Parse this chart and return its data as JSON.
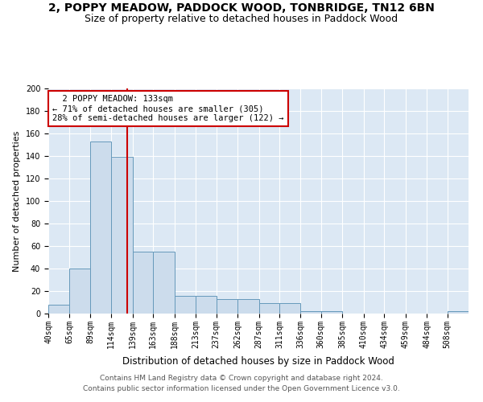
{
  "title1": "2, POPPY MEADOW, PADDOCK WOOD, TONBRIDGE, TN12 6BN",
  "title2": "Size of property relative to detached houses in Paddock Wood",
  "xlabel": "Distribution of detached houses by size in Paddock Wood",
  "ylabel": "Number of detached properties",
  "footer1": "Contains HM Land Registry data © Crown copyright and database right 2024.",
  "footer2": "Contains public sector information licensed under the Open Government Licence v3.0.",
  "annotation_line1": "2 POPPY MEADOW: 133sqm",
  "annotation_line2": "← 71% of detached houses are smaller (305)",
  "annotation_line3": "28% of semi-detached houses are larger (122) →",
  "property_size": 133,
  "bar_edges": [
    40,
    65,
    89,
    114,
    139,
    163,
    188,
    213,
    237,
    262,
    287,
    311,
    336,
    360,
    385,
    410,
    434,
    459,
    484,
    508,
    533
  ],
  "bar_heights": [
    8,
    40,
    153,
    139,
    55,
    55,
    16,
    16,
    13,
    13,
    9,
    9,
    2,
    2,
    0,
    0,
    0,
    0,
    0,
    2
  ],
  "bar_color": "#ccdcec",
  "bar_edge_color": "#6699bb",
  "vline_color": "#cc0000",
  "vline_x": 133,
  "background_color": "#dce8f4",
  "ylim": [
    0,
    200
  ],
  "yticks": [
    0,
    20,
    40,
    60,
    80,
    100,
    120,
    140,
    160,
    180,
    200
  ],
  "annotation_box_color": "#cc0000",
  "annotation_fontsize": 7.5,
  "title1_fontsize": 10,
  "title2_fontsize": 9,
  "xlabel_fontsize": 8.5,
  "ylabel_fontsize": 8,
  "tick_fontsize": 7,
  "footer_fontsize": 6.5
}
